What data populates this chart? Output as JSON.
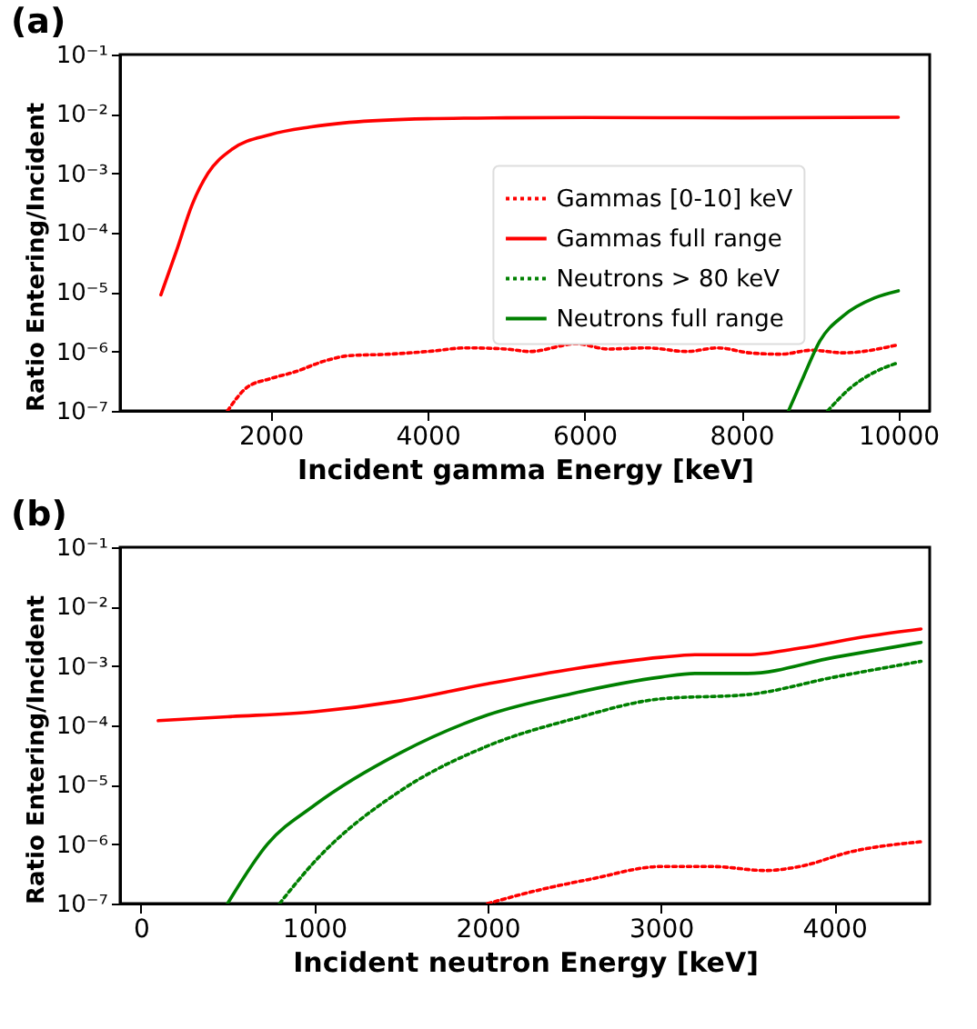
{
  "chart_data": [
    {
      "type": "line",
      "title": "(a)",
      "xlabel": "Incident gamma Energy [keV]",
      "ylabel": "Ratio Entering/Incident",
      "log": "y",
      "grid": false,
      "legend": "center",
      "marker": "none",
      "xlim": [
        80,
        10400
      ],
      "xticks": [
        2000,
        4000,
        6000,
        8000,
        10000
      ],
      "ylim": [
        1e-07,
        0.1
      ],
      "yticks": [
        {
          "value": 1e-07,
          "label": "10⁻⁷"
        },
        {
          "value": 1e-06,
          "label": "10⁻⁶"
        },
        {
          "value": 1e-05,
          "label": "10⁻⁵"
        },
        {
          "value": 0.0001,
          "label": "10⁻⁴"
        },
        {
          "value": 0.001,
          "label": "10⁻³"
        },
        {
          "value": 0.01,
          "label": "10⁻²"
        },
        {
          "value": 0.1,
          "label": "10⁻¹"
        }
      ],
      "series": [
        {
          "name": "Gammas [0-10] keV",
          "color": "#ff0000",
          "line_style": "dotted",
          "x": [
            1450,
            1700,
            2000,
            2300,
            2700,
            3000,
            3500,
            4000,
            4500,
            5000,
            5300,
            5900,
            6300,
            6800,
            7300,
            7700,
            8100,
            8500,
            8900,
            9300,
            10000
          ],
          "values": [
            1e-07,
            2.5e-07,
            3.5e-07,
            4.5e-07,
            7e-07,
            8.5e-07,
            9e-07,
            1e-06,
            1.15e-06,
            1.1e-06,
            1e-06,
            1.35e-06,
            1.1e-06,
            1.15e-06,
            1e-06,
            1.15e-06,
            9.5e-07,
            9e-07,
            1.05e-06,
            9.5e-07,
            1.3e-06
          ]
        },
        {
          "name": "Gammas full range",
          "color": "#ff0000",
          "line_style": "solid",
          "x": [
            600,
            800,
            1000,
            1200,
            1500,
            2000,
            2500,
            3000,
            4000,
            5000,
            6000,
            8000,
            10000
          ],
          "values": [
            9e-06,
            5e-05,
            0.0003,
            0.001,
            0.0025,
            0.0045,
            0.006,
            0.0072,
            0.0083,
            0.0086,
            0.0087,
            0.0086,
            0.0088
          ]
        },
        {
          "name": "Neutrons > 80 keV",
          "color": "#008000",
          "line_style": "dotted",
          "x": [
            9100,
            9400,
            9700,
            10000
          ],
          "values": [
            1e-07,
            2.5e-07,
            4.5e-07,
            6.5e-07
          ]
        },
        {
          "name": "Neutrons full range",
          "color": "#008000",
          "line_style": "solid",
          "x": [
            8600,
            8800,
            9000,
            9300,
            9700,
            10000
          ],
          "values": [
            1e-07,
            4e-07,
            1.5e-06,
            4e-06,
            8e-06,
            1.05e-05
          ]
        }
      ]
    },
    {
      "type": "line",
      "title": "(b)",
      "xlabel": "Incident neutron Energy [keV]",
      "ylabel": "Ratio Entering/Incident",
      "log": "y",
      "grid": false,
      "legend": "top left",
      "marker": "none",
      "xlim": [
        -120,
        4550
      ],
      "xticks": [
        0,
        1000,
        2000,
        3000,
        4000
      ],
      "ylim": [
        1e-07,
        0.1
      ],
      "yticks": [
        {
          "value": 1e-07,
          "label": "10⁻⁷"
        },
        {
          "value": 1e-06,
          "label": "10⁻⁶"
        },
        {
          "value": 1e-05,
          "label": "10⁻⁵"
        },
        {
          "value": 0.0001,
          "label": "10⁻⁴"
        },
        {
          "value": 0.001,
          "label": "10⁻³"
        },
        {
          "value": 0.01,
          "label": "10⁻²"
        },
        {
          "value": 0.1,
          "label": "10⁻¹"
        }
      ],
      "series": [
        {
          "name": "Gammas [0-10] keV",
          "color": "#ff0000",
          "line_style": "dotted",
          "x": [
            2000,
            2300,
            2600,
            3000,
            3300,
            3600,
            3800,
            4100,
            4500
          ],
          "values": [
            1e-07,
            1.7e-07,
            2.6e-07,
            4.2e-07,
            4.2e-07,
            3.6e-07,
            4.2e-07,
            7.5e-07,
            1.1e-06
          ]
        },
        {
          "name": "Gammas full range",
          "color": "#ff0000",
          "line_style": "solid",
          "x": [
            100,
            500,
            1000,
            1500,
            2000,
            2500,
            3000,
            3200,
            3500,
            3800,
            4200,
            4500
          ],
          "values": [
            0.00012,
            0.00014,
            0.00017,
            0.00026,
            0.0005,
            0.0009,
            0.0014,
            0.00155,
            0.00155,
            0.002,
            0.0032,
            0.0042
          ]
        },
        {
          "name": "Neutrons > 80 keV",
          "color": "#008000",
          "line_style": "dotted",
          "x": [
            800,
            1000,
            1500,
            2000,
            2500,
            3000,
            3500,
            4000,
            4500
          ],
          "values": [
            1e-07,
            5e-07,
            8e-06,
            4.5e-05,
            0.00013,
            0.00028,
            0.00033,
            0.00065,
            0.0012
          ]
        },
        {
          "name": "Neutrons full range",
          "color": "#008000",
          "line_style": "solid",
          "x": [
            500,
            730,
            1000,
            1500,
            2000,
            2500,
            3000,
            3200,
            3500,
            4000,
            4500
          ],
          "values": [
            1e-07,
            1e-06,
            4.5e-06,
            3.5e-05,
            0.00015,
            0.00035,
            0.00065,
            0.00075,
            0.00075,
            0.0014,
            0.0025
          ]
        }
      ]
    }
  ]
}
